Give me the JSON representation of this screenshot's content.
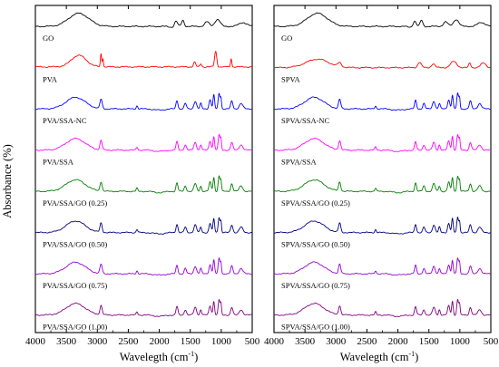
{
  "figure": {
    "ylabel": "Absorbance (%)",
    "x_unit_sup": "-1"
  },
  "chart_data": [
    {
      "type": "line",
      "panel": "left",
      "xlabel": "Wavelegth (cm",
      "xlim": [
        4000,
        500
      ],
      "x_reversed": true,
      "x_ticks": [
        "4000",
        "3500",
        "3000",
        "2500",
        "2000",
        "1500",
        "1000",
        "500"
      ],
      "y_ticks": [],
      "grid": false,
      "series": [
        {
          "name": "GO",
          "color": "#000000",
          "profile": "go",
          "x": [
            4000,
            3800,
            3600,
            3500,
            3400,
            3300,
            3200,
            3100,
            3000,
            2800,
            2600,
            2400,
            2200,
            2000,
            1900,
            1800,
            1730,
            1700,
            1650,
            1620,
            1600,
            1550,
            1500,
            1450,
            1400,
            1380,
            1300,
            1250,
            1200,
            1150,
            1100,
            1050,
            1000,
            900,
            800,
            700,
            600,
            500
          ],
          "y": [
            0.02,
            0.05,
            0.22,
            0.55,
            0.85,
            0.95,
            0.9,
            0.75,
            0.6,
            0.42,
            0.3,
            0.22,
            0.15,
            0.1,
            0.04,
            0.0,
            0.35,
            0.3,
            0.1,
            0.45,
            0.38,
            0.1,
            0.18,
            0.08,
            0.02,
            0.1,
            0.25,
            0.4,
            0.18,
            0.3,
            0.45,
            0.5,
            0.35,
            0.1,
            0.15,
            0.22,
            0.35,
            0.3
          ]
        },
        {
          "name": "PVA",
          "color": "#ff0000",
          "profile": "pva"
        },
        {
          "name": "PVA/SSA-NC",
          "color": "#0000ff",
          "profile": "ssa"
        },
        {
          "name": "PVA/SSA",
          "color": "#ff00ff",
          "profile": "ssa"
        },
        {
          "name": "PVA/SSA/GO (0.25)",
          "color": "#008000",
          "profile": "ssa"
        },
        {
          "name": "PVA/SSA/GO (0.50)",
          "color": "#000080",
          "profile": "ssa"
        },
        {
          "name": "PVA/SSA/GO (0.75)",
          "color": "#9400d3",
          "profile": "ssa"
        },
        {
          "name": "PVA/SSA/GO (1.00)",
          "color": "#800080",
          "profile": "ssa"
        }
      ]
    },
    {
      "type": "line",
      "panel": "right",
      "xlabel": "Wavelegth (cm",
      "xlim": [
        4000,
        500
      ],
      "x_reversed": true,
      "x_ticks": [
        "4000",
        "3500",
        "3000",
        "2500",
        "2000",
        "1500",
        "1000",
        "500"
      ],
      "y_ticks": [],
      "grid": false,
      "series": [
        {
          "name": "GO",
          "color": "#000000",
          "profile": "go"
        },
        {
          "name": "SPVA",
          "color": "#ff0000",
          "profile": "spva"
        },
        {
          "name": "SPVA/SSA-NC",
          "color": "#0000ff",
          "profile": "ssa"
        },
        {
          "name": "SPVA/SSA",
          "color": "#ff00ff",
          "profile": "ssa"
        },
        {
          "name": "SPVA/SSA/GO (0.25)",
          "color": "#008000",
          "profile": "ssa"
        },
        {
          "name": "SPVA/SSA/GO (0.50)",
          "color": "#000080",
          "profile": "ssa"
        },
        {
          "name": "SPVA/SSA/GO (0.75)",
          "color": "#9400d3",
          "profile": "ssa"
        },
        {
          "name": "SPVA/SSA/GO (1.00)",
          "color": "#800080",
          "profile": "ssa"
        }
      ]
    }
  ]
}
